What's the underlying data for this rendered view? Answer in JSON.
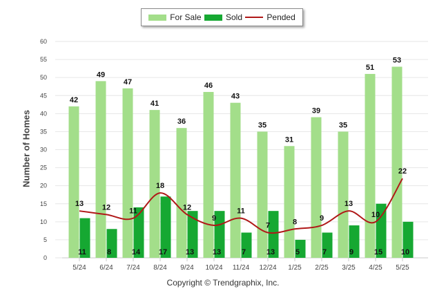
{
  "legend": {
    "for_sale": "For Sale",
    "sold": "Sold",
    "pended": "Pended"
  },
  "copyright": "Copyright © Trendgraphix, Inc.",
  "colors": {
    "for_sale": "#a3de8a",
    "sold": "#16a832",
    "pended": "#b01818",
    "grid": "#e6e6e6",
    "axis_text": "#444444"
  },
  "chart_data": {
    "type": "bar",
    "categories": [
      "5/24",
      "6/24",
      "7/24",
      "8/24",
      "9/24",
      "10/24",
      "11/24",
      "12/24",
      "1/25",
      "2/25",
      "3/25",
      "4/25",
      "5/25"
    ],
    "series": [
      {
        "name": "For Sale",
        "type": "bar",
        "values": [
          42,
          49,
          47,
          41,
          36,
          46,
          43,
          35,
          31,
          39,
          35,
          51,
          53
        ]
      },
      {
        "name": "Sold",
        "type": "bar",
        "values": [
          11,
          8,
          14,
          17,
          13,
          13,
          7,
          13,
          5,
          7,
          9,
          15,
          10
        ]
      },
      {
        "name": "Pended",
        "type": "line",
        "values": [
          13,
          12,
          11,
          18,
          12,
          9,
          11,
          7,
          8,
          9,
          13,
          10,
          22
        ]
      }
    ],
    "ylabel": "Number of Homes",
    "xlabel": "",
    "ylim": [
      0,
      60
    ],
    "yticks": [
      0,
      5,
      10,
      15,
      20,
      25,
      30,
      35,
      40,
      45,
      50,
      55,
      60
    ],
    "grid": true,
    "legend_position": "top"
  }
}
